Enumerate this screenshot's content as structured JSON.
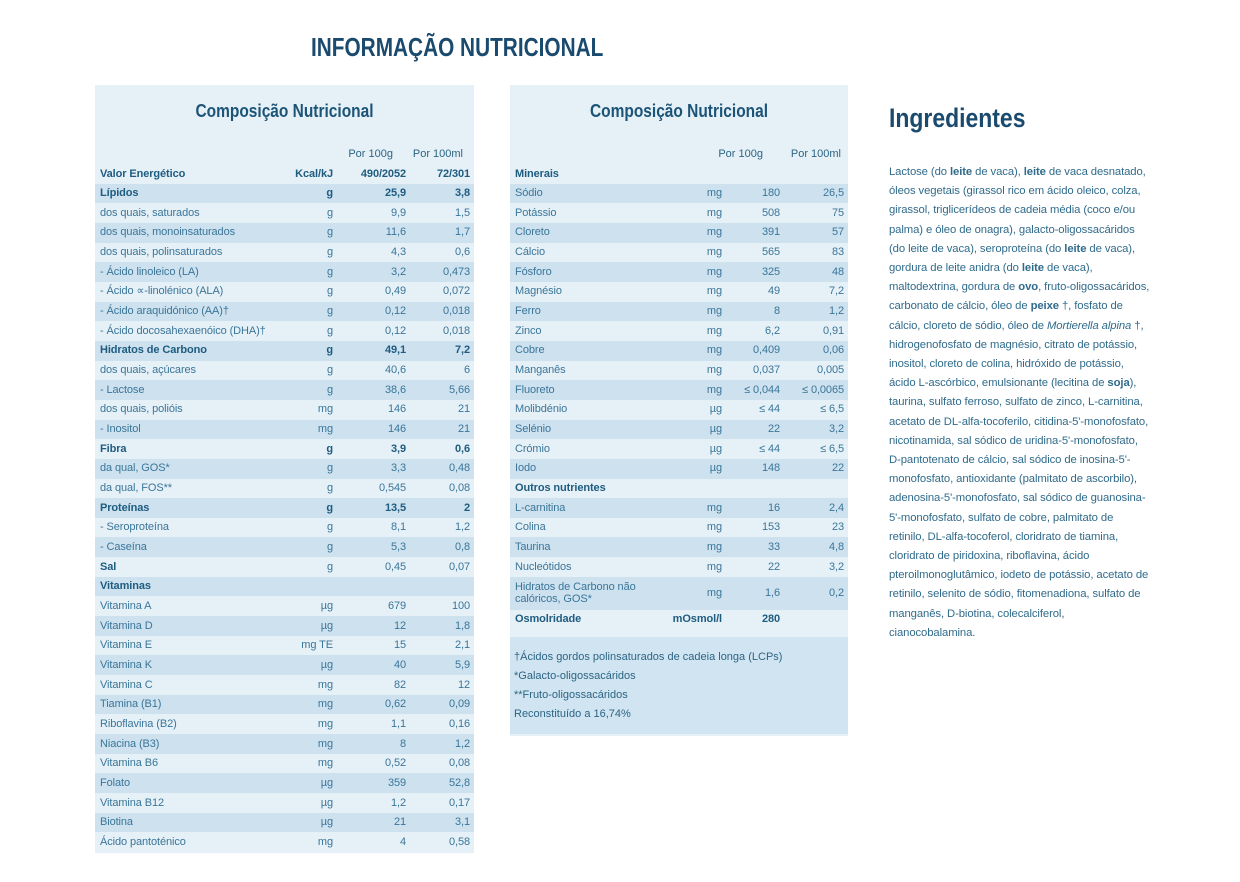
{
  "page_title": "INFORMAÇÃO NUTRICIONAL",
  "colors": {
    "heading_text": "#1a4a6e",
    "table_text": "#3a7699",
    "table_text_bold": "#1e5c80",
    "stripe_light": "#e6f0f7",
    "stripe_dark": "#cde1ef",
    "footnote_block": "#d0e4f1"
  },
  "left_table": {
    "title": "Composição Nutricional",
    "col_headers": [
      "Por 100g",
      "Por 100ml"
    ],
    "rows": [
      {
        "label": "Valor Energético",
        "unit": "Kcal/kJ",
        "per100g": "490/2052",
        "per100ml": "72/301",
        "bold": true
      },
      {
        "label": "Lípidos",
        "unit": "g",
        "per100g": "25,9",
        "per100ml": "3,8",
        "bold": true
      },
      {
        "label": "dos quais, saturados",
        "unit": "g",
        "per100g": "9,9",
        "per100ml": "1,5"
      },
      {
        "label": "dos quais, monoinsaturados",
        "unit": "g",
        "per100g": "11,6",
        "per100ml": "1,7"
      },
      {
        "label": "dos quais, polinsaturados",
        "unit": "g",
        "per100g": "4,3",
        "per100ml": "0,6"
      },
      {
        "label": "- Ácido linoleico (LA)",
        "unit": "g",
        "per100g": "3,2",
        "per100ml": "0,473"
      },
      {
        "label": "- Ácido ∝-linolénico (ALA)",
        "unit": "g",
        "per100g": "0,49",
        "per100ml": "0,072"
      },
      {
        "label": "- Ácido araquidónico (AA)†",
        "unit": "g",
        "per100g": "0,12",
        "per100ml": "0,018"
      },
      {
        "label": "- Ácido docosahexaenóico (DHA)†",
        "unit": "g",
        "per100g": "0,12",
        "per100ml": "0,018"
      },
      {
        "label": "Hidratos de Carbono",
        "unit": "g",
        "per100g": "49,1",
        "per100ml": "7,2",
        "bold": true
      },
      {
        "label": "dos quais, açúcares",
        "unit": "g",
        "per100g": "40,6",
        "per100ml": "6"
      },
      {
        "label": "- Lactose",
        "unit": "g",
        "per100g": "38,6",
        "per100ml": "5,66"
      },
      {
        "label": "dos quais, polióis",
        "unit": "mg",
        "per100g": "146",
        "per100ml": "21"
      },
      {
        "label": "- Inositol",
        "unit": "mg",
        "per100g": "146",
        "per100ml": "21"
      },
      {
        "label": "Fibra",
        "unit": "g",
        "per100g": "3,9",
        "per100ml": "0,6",
        "bold": true
      },
      {
        "label": "da qual, GOS*",
        "unit": "g",
        "per100g": "3,3",
        "per100ml": "0,48"
      },
      {
        "label": "da qual, FOS**",
        "unit": "g",
        "per100g": "0,545",
        "per100ml": "0,08"
      },
      {
        "label": "Proteínas",
        "unit": "g",
        "per100g": "13,5",
        "per100ml": "2",
        "bold": true
      },
      {
        "label": "- Seroproteína",
        "unit": "g",
        "per100g": "8,1",
        "per100ml": "1,2"
      },
      {
        "label": "- Caseína",
        "unit": "g",
        "per100g": "5,3",
        "per100ml": "0,8"
      },
      {
        "label": "Sal",
        "unit": "g",
        "per100g": "0,45",
        "per100ml": "0,07",
        "boldlabel": true
      },
      {
        "label": "Vitaminas",
        "unit": "",
        "per100g": "",
        "per100ml": "",
        "bold": true,
        "section": true
      },
      {
        "label": "Vitamina A",
        "unit": "µg",
        "per100g": "679",
        "per100ml": "100"
      },
      {
        "label": "Vitamina D",
        "unit": "µg",
        "per100g": "12",
        "per100ml": "1,8"
      },
      {
        "label": "Vitamina E",
        "unit": "mg TE",
        "per100g": "15",
        "per100ml": "2,1"
      },
      {
        "label": "Vitamina K",
        "unit": "µg",
        "per100g": "40",
        "per100ml": "5,9"
      },
      {
        "label": "Vitamina C",
        "unit": "mg",
        "per100g": "82",
        "per100ml": "12"
      },
      {
        "label": "Tiamina (B1)",
        "unit": "mg",
        "per100g": "0,62",
        "per100ml": "0,09"
      },
      {
        "label": "Riboflavina (B2)",
        "unit": "mg",
        "per100g": "1,1",
        "per100ml": "0,16"
      },
      {
        "label": "Niacina (B3)",
        "unit": "mg",
        "per100g": "8",
        "per100ml": "1,2"
      },
      {
        "label": "Vitamina B6",
        "unit": "mg",
        "per100g": "0,52",
        "per100ml": "0,08"
      },
      {
        "label": "Folato",
        "unit": "µg",
        "per100g": "359",
        "per100ml": "52,8"
      },
      {
        "label": "Vitamina B12",
        "unit": "µg",
        "per100g": "1,2",
        "per100ml": "0,17"
      },
      {
        "label": "Biotina",
        "unit": "µg",
        "per100g": "21",
        "per100ml": "3,1"
      },
      {
        "label": "Ácido pantoténico",
        "unit": "mg",
        "per100g": "4",
        "per100ml": "0,58"
      }
    ]
  },
  "right_table": {
    "title": "Composição Nutricional",
    "col_headers": [
      "Por 100g",
      "Por 100ml"
    ],
    "rows": [
      {
        "label": "Minerais",
        "unit": "",
        "per100g": "",
        "per100ml": "",
        "bold": true,
        "section": true
      },
      {
        "label": "Sódio",
        "unit": "mg",
        "per100g": "180",
        "per100ml": "26,5"
      },
      {
        "label": "Potássio",
        "unit": "mg",
        "per100g": "508",
        "per100ml": "75"
      },
      {
        "label": "Cloreto",
        "unit": "mg",
        "per100g": "391",
        "per100ml": "57"
      },
      {
        "label": "Cálcio",
        "unit": "mg",
        "per100g": "565",
        "per100ml": "83"
      },
      {
        "label": "Fósforo",
        "unit": "mg",
        "per100g": "325",
        "per100ml": "48"
      },
      {
        "label": "Magnésio",
        "unit": "mg",
        "per100g": "49",
        "per100ml": "7,2"
      },
      {
        "label": "Ferro",
        "unit": "mg",
        "per100g": "8",
        "per100ml": "1,2"
      },
      {
        "label": "Zinco",
        "unit": "mg",
        "per100g": "6,2",
        "per100ml": "0,91"
      },
      {
        "label": "Cobre",
        "unit": "mg",
        "per100g": "0,409",
        "per100ml": "0,06"
      },
      {
        "label": "Manganês",
        "unit": "mg",
        "per100g": "0,037",
        "per100ml": "0,005"
      },
      {
        "label": "Fluoreto",
        "unit": "mg",
        "per100g": "≤ 0,044",
        "per100ml": "≤ 0,0065"
      },
      {
        "label": "Molibdénio",
        "unit": "µg",
        "per100g": "≤ 44",
        "per100ml": "≤ 6,5"
      },
      {
        "label": "Selénio",
        "unit": "µg",
        "per100g": "22",
        "per100ml": "3,2"
      },
      {
        "label": "Crómio",
        "unit": "µg",
        "per100g": "≤ 44",
        "per100ml": "≤ 6,5"
      },
      {
        "label": "Iodo",
        "unit": "µg",
        "per100g": "148",
        "per100ml": "22"
      },
      {
        "label": "Outros nutrientes",
        "unit": "",
        "per100g": "",
        "per100ml": "",
        "bold": true,
        "section": true
      },
      {
        "label": "L-carnitina",
        "unit": "mg",
        "per100g": "16",
        "per100ml": "2,4"
      },
      {
        "label": "Colina",
        "unit": "mg",
        "per100g": "153",
        "per100ml": "23"
      },
      {
        "label": "Taurina",
        "unit": "mg",
        "per100g": "33",
        "per100ml": "4,8"
      },
      {
        "label": "Nucleótidos",
        "unit": "mg",
        "per100g": "22",
        "per100ml": "3,2"
      },
      {
        "label": "Hidratos de Carbono não calóricos, GOS*",
        "unit": "mg",
        "per100g": "1,6",
        "per100ml": "0,2",
        "tall": true
      },
      {
        "label": "Osmolridade",
        "unit": "mOsmol/l",
        "per100g": "280",
        "per100ml": "",
        "bold": true
      }
    ],
    "footnotes": [
      "†Ácidos gordos polinsaturados de cadeia longa (LCPs)",
      "*Galacto-oligossacáridos",
      "**Fruto-oligossacáridos",
      "Reconstituído a 16,74%"
    ]
  },
  "ingredients": {
    "title": "Ingredientes",
    "segments": [
      {
        "text": "Lactose (do "
      },
      {
        "text": "leite",
        "bold": true
      },
      {
        "text": " de vaca), "
      },
      {
        "text": "leite",
        "bold": true
      },
      {
        "text": " de vaca desnatado, óleos vegetais (girassol rico em ácido oleico, colza, girassol, triglicerídeos de cadeia média (coco e/ou palma) e óleo de onagra), galacto-oligossacáridos (do leite de vaca), seroproteína (do "
      },
      {
        "text": "leite",
        "bold": true
      },
      {
        "text": " de vaca),  gordura de leite anidra (do "
      },
      {
        "text": "leite",
        "bold": true
      },
      {
        "text": " de vaca),  maltodextrina, gordura de "
      },
      {
        "text": "ovo",
        "bold": true
      },
      {
        "text": ", fruto-oligossacáridos, carbonato de cálcio, óleo de "
      },
      {
        "text": "peixe",
        "bold": true
      },
      {
        "text": " †, fosfato de cálcio, cloreto de sódio, óleo de "
      },
      {
        "text": "Mortierella alpina",
        "italic": true
      },
      {
        "text": " †, hidrogenofosfato de magnésio, citrato de potássio, inositol, cloreto de colina, hidróxido de potássio, ácido L-ascórbico, emulsionante  (lecitina de "
      },
      {
        "text": "soja",
        "bold": true
      },
      {
        "text": "), taurina, sulfato ferroso, sulfato de zinco,  L-carnitina, acetato de DL-alfa-tocoferilo,  citidina-5'-monofosfato, nicotinamida, sal sódico de uridina-5'-monofosfato, D-pantotenato de cálcio, sal sódico de inosina-5'-monofosfato, antioxidante (palmitato de ascorbilo), adenosina-5'-monofosfato, sal sódico de guanosina-5'-monofosfato, sulfato de cobre, palmitato de retinilo, DL-alfa-tocoferol, cloridrato de tiamina, cloridrato de piridoxina, riboflavina, ácido pteroilmonoglutâmico, iodeto de potássio, acetato de retinilo, selenito de sódio, fitomenadiona, sulfato de manganês, D-biotina, colecalciferol, cianocobalamina."
      }
    ]
  }
}
